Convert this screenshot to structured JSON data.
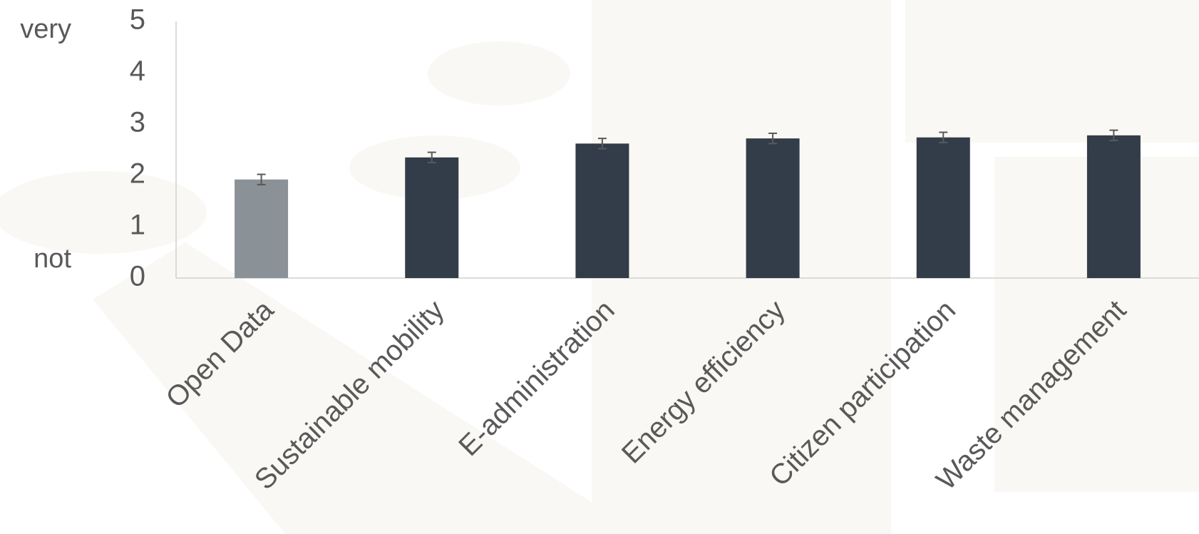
{
  "chart_data": {
    "type": "bar",
    "annotations": [
      "very",
      "not"
    ],
    "categories": [
      "Open Data",
      "Sustainable mobility",
      "E-administration",
      "Energy efficiency",
      "Citizen participation",
      "Waste management"
    ],
    "values": [
      1.92,
      2.35,
      2.62,
      2.72,
      2.74,
      2.78
    ],
    "errors": [
      0.1,
      0.1,
      0.1,
      0.1,
      0.1,
      0.1
    ],
    "colors": [
      "#8a9197",
      "#333d49",
      "#333d49",
      "#333d49",
      "#333d49",
      "#333d49"
    ],
    "ylim": [
      0,
      5
    ],
    "yticks": [
      0,
      1,
      2,
      3,
      4,
      5
    ],
    "grid": false
  }
}
